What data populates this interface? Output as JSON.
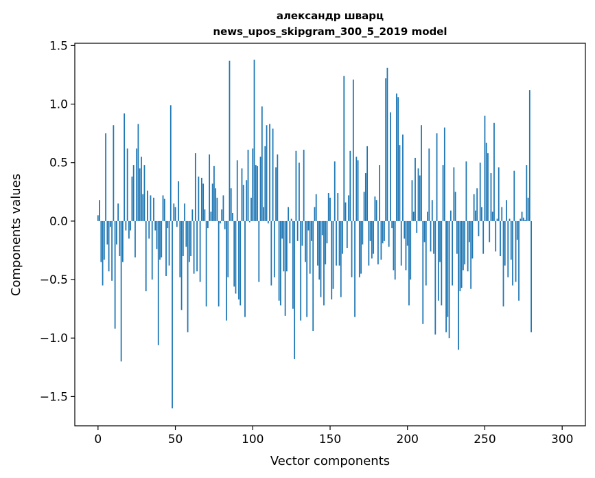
{
  "chart_data": {
    "type": "bar",
    "title": "александр шварц",
    "subtitle": "news_upos_skipgram_300_5_2019 model",
    "xlabel": "Vector components",
    "ylabel": "Components values",
    "xlim": [
      -15,
      315
    ],
    "ylim": [
      -1.75,
      1.52
    ],
    "xticks": [
      0,
      50,
      100,
      150,
      200,
      250,
      300
    ],
    "xtick_labels": [
      "0",
      "50",
      "100",
      "150",
      "200",
      "250",
      "300"
    ],
    "yticks": [
      -1.5,
      -1.0,
      -0.5,
      0.0,
      0.5,
      1.0,
      1.5
    ],
    "ytick_labels": [
      "−1.5",
      "−1.0",
      "−0.5",
      "0.0",
      "0.5",
      "1.0",
      "1.5"
    ],
    "bar_color": "#1f77b4",
    "values": [
      0.05,
      0.18,
      -0.35,
      -0.55,
      -0.33,
      0.75,
      -0.2,
      -0.43,
      -0.05,
      -0.51,
      0.82,
      -0.92,
      -0.2,
      0.15,
      -0.3,
      -1.2,
      -0.35,
      0.92,
      -0.08,
      0.62,
      -0.15,
      -0.08,
      0.38,
      0.48,
      -0.31,
      0.62,
      0.83,
      0.45,
      0.55,
      0.23,
      0.48,
      -0.6,
      0.26,
      -0.15,
      0.22,
      -0.5,
      0.2,
      -0.08,
      -0.24,
      -1.06,
      -0.33,
      -0.31,
      0.22,
      0.19,
      -0.47,
      -0.06,
      -0.38,
      0.99,
      -1.6,
      0.15,
      0.12,
      -0.05,
      0.34,
      -0.48,
      -0.76,
      -0.3,
      0.15,
      -0.22,
      -0.95,
      -0.35,
      -0.3,
      0.1,
      -0.45,
      0.58,
      -0.43,
      0.38,
      -0.52,
      0.37,
      0.32,
      0.1,
      -0.73,
      -0.06,
      0.57,
      0.08,
      0.32,
      0.47,
      0.28,
      0.2,
      -0.73,
      -0.02,
      0.1,
      0.22,
      -0.07,
      -0.85,
      -0.48,
      1.37,
      0.28,
      0.07,
      -0.56,
      -0.62,
      0.52,
      -0.67,
      -0.72,
      0.45,
      0.31,
      -0.82,
      0.35,
      0.61,
      -0.01,
      0.2,
      0.62,
      1.38,
      0.48,
      0.47,
      -0.52,
      0.55,
      0.98,
      0.12,
      0.64,
      0.82,
      -0.02,
      0.83,
      -0.55,
      0.79,
      -0.48,
      0.46,
      0.57,
      -0.68,
      -0.72,
      -0.15,
      -0.43,
      -0.81,
      -0.43,
      0.12,
      -0.19,
      0.02,
      -0.75,
      -1.18,
      0.6,
      -0.17,
      0.5,
      -0.85,
      -0.21,
      0.61,
      -0.35,
      -0.82,
      -0.08,
      -0.45,
      -0.17,
      -0.94,
      0.12,
      0.23,
      -0.38,
      -0.5,
      -0.65,
      -0.12,
      -0.72,
      -0.37,
      -0.19,
      0.24,
      0.2,
      -0.67,
      -0.58,
      0.51,
      -0.38,
      0.24,
      -0.38,
      -0.65,
      -0.28,
      1.24,
      0.16,
      -0.23,
      0.22,
      0.6,
      -0.48,
      1.21,
      -0.82,
      0.55,
      0.52,
      -0.48,
      -0.45,
      -0.2,
      0.25,
      0.41,
      0.64,
      -0.38,
      -0.17,
      -0.32,
      -0.28,
      0.21,
      0.18,
      -0.37,
      0.48,
      -0.33,
      -0.19,
      -0.17,
      1.22,
      1.31,
      -0.22,
      0.93,
      -0.06,
      -0.42,
      -0.5,
      1.09,
      1.06,
      0.65,
      -0.38,
      0.74,
      -0.15,
      -0.42,
      -0.21,
      -0.72,
      -0.5,
      0.35,
      0.08,
      0.54,
      -0.1,
      0.45,
      0.39,
      0.82,
      -0.88,
      -0.18,
      -0.55,
      0.08,
      0.62,
      -0.26,
      0.18,
      -0.28,
      -0.97,
      0.75,
      -0.68,
      -0.35,
      -0.72,
      0.48,
      0.8,
      -0.95,
      -0.82,
      -1.0,
      0.09,
      -0.55,
      0.46,
      0.25,
      -0.28,
      -1.1,
      -0.6,
      -0.57,
      -0.42,
      -0.37,
      0.51,
      -0.43,
      -0.18,
      -0.58,
      -0.32,
      0.23,
      0.09,
      0.28,
      -0.13,
      0.5,
      0.12,
      -0.28,
      0.9,
      0.67,
      0.58,
      -0.18,
      0.41,
      0.08,
      0.84,
      -0.26,
      0.02,
      0.46,
      -0.3,
      0.12,
      -0.73,
      -0.38,
      0.18,
      -0.48,
      0.02,
      -0.33,
      -0.55,
      0.43,
      -0.52,
      -0.16,
      -0.68,
      0.02,
      0.08,
      0.03,
      0.01,
      0.48,
      0.2,
      1.12,
      -0.95
    ]
  }
}
